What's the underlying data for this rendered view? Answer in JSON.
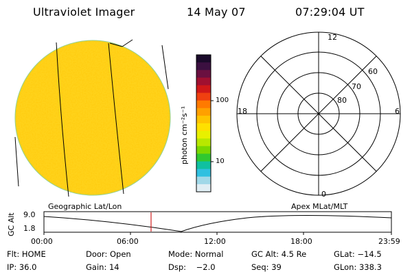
{
  "header": {
    "instrument": "Ultraviolet Imager",
    "date": "14 May 07",
    "time": "07:29:04 UT"
  },
  "colorbar": {
    "unit_label": "photon cm⁻²s⁻¹",
    "tick_labels": [
      "100",
      "10"
    ],
    "colors": [
      "#1a0a2a",
      "#3b1040",
      "#6a1040",
      "#a01030",
      "#d01818",
      "#f04010",
      "#ff7a00",
      "#ffa000",
      "#ffc400",
      "#ffe000",
      "#e8f000",
      "#b8e800",
      "#7ad800",
      "#30c830",
      "#10c0a0",
      "#30c0e0",
      "#a0d8e8",
      "#e0eef4"
    ]
  },
  "polar_plot": {
    "mlt_labels": [
      "12",
      "18",
      "6",
      "0"
    ],
    "lat_labels": [
      "60",
      "70",
      "80"
    ]
  },
  "ephemeris_plot": {
    "left_label": "Geographic Lat/Lon",
    "right_label": "Apex MLat/MLT",
    "y_axis_label": "GC Alt",
    "y_max_label": "9.0",
    "y_min_label": "1.8",
    "time_ticks": [
      "00:00",
      "06:00",
      "12:00",
      "18:00",
      "23:59"
    ],
    "current_time_marker_color": "#d02020"
  },
  "status": {
    "filter": "Flt: HOME",
    "door": "Door: Open",
    "mode": "Mode: Normal",
    "gc_alt": "GC Alt: 4.5 Re",
    "glat": "GLat: −14.5",
    "ip": "IP: 36.0",
    "gain": "Gain: 14",
    "dsp": "Dsp:    −2.0",
    "seq": "Seq: 39",
    "glon": "GLon: 338.3"
  }
}
